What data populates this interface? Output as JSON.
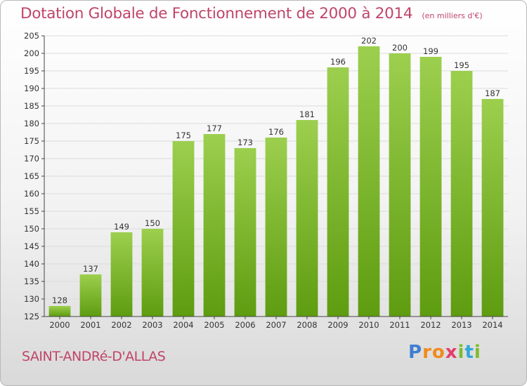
{
  "title": "Dotation Globale de Fonctionnement de 2000 à 2014",
  "unit_label": "(en milliers d'€)",
  "town": "SAINT-ANDRé-D'ALLAS",
  "logo": {
    "text": "Proxiti",
    "colors": [
      "#3f7fd0",
      "#f28a1b",
      "#e43d6a",
      "#7cbc2a",
      "#30a8d8"
    ]
  },
  "colors": {
    "title": "#c0446a",
    "bar_top": "#9ccf4e",
    "bar_bottom": "#5e9c10",
    "grid": "#dcdcdc"
  },
  "chart_data": {
    "type": "bar",
    "title": "Dotation Globale de Fonctionnement de 2000 à 2014",
    "xlabel": "",
    "ylabel": "",
    "categories": [
      "2000",
      "2001",
      "2002",
      "2003",
      "2004",
      "2005",
      "2006",
      "2007",
      "2008",
      "2009",
      "2010",
      "2011",
      "2012",
      "2013",
      "2014"
    ],
    "values": [
      128,
      137,
      149,
      150,
      175,
      177,
      173,
      176,
      181,
      196,
      202,
      200,
      199,
      195,
      187
    ],
    "ylim": [
      125,
      205
    ],
    "yticks": [
      125,
      130,
      135,
      140,
      145,
      150,
      155,
      160,
      165,
      170,
      175,
      180,
      185,
      190,
      195,
      200,
      205
    ],
    "grid": true,
    "data_labels": true
  }
}
